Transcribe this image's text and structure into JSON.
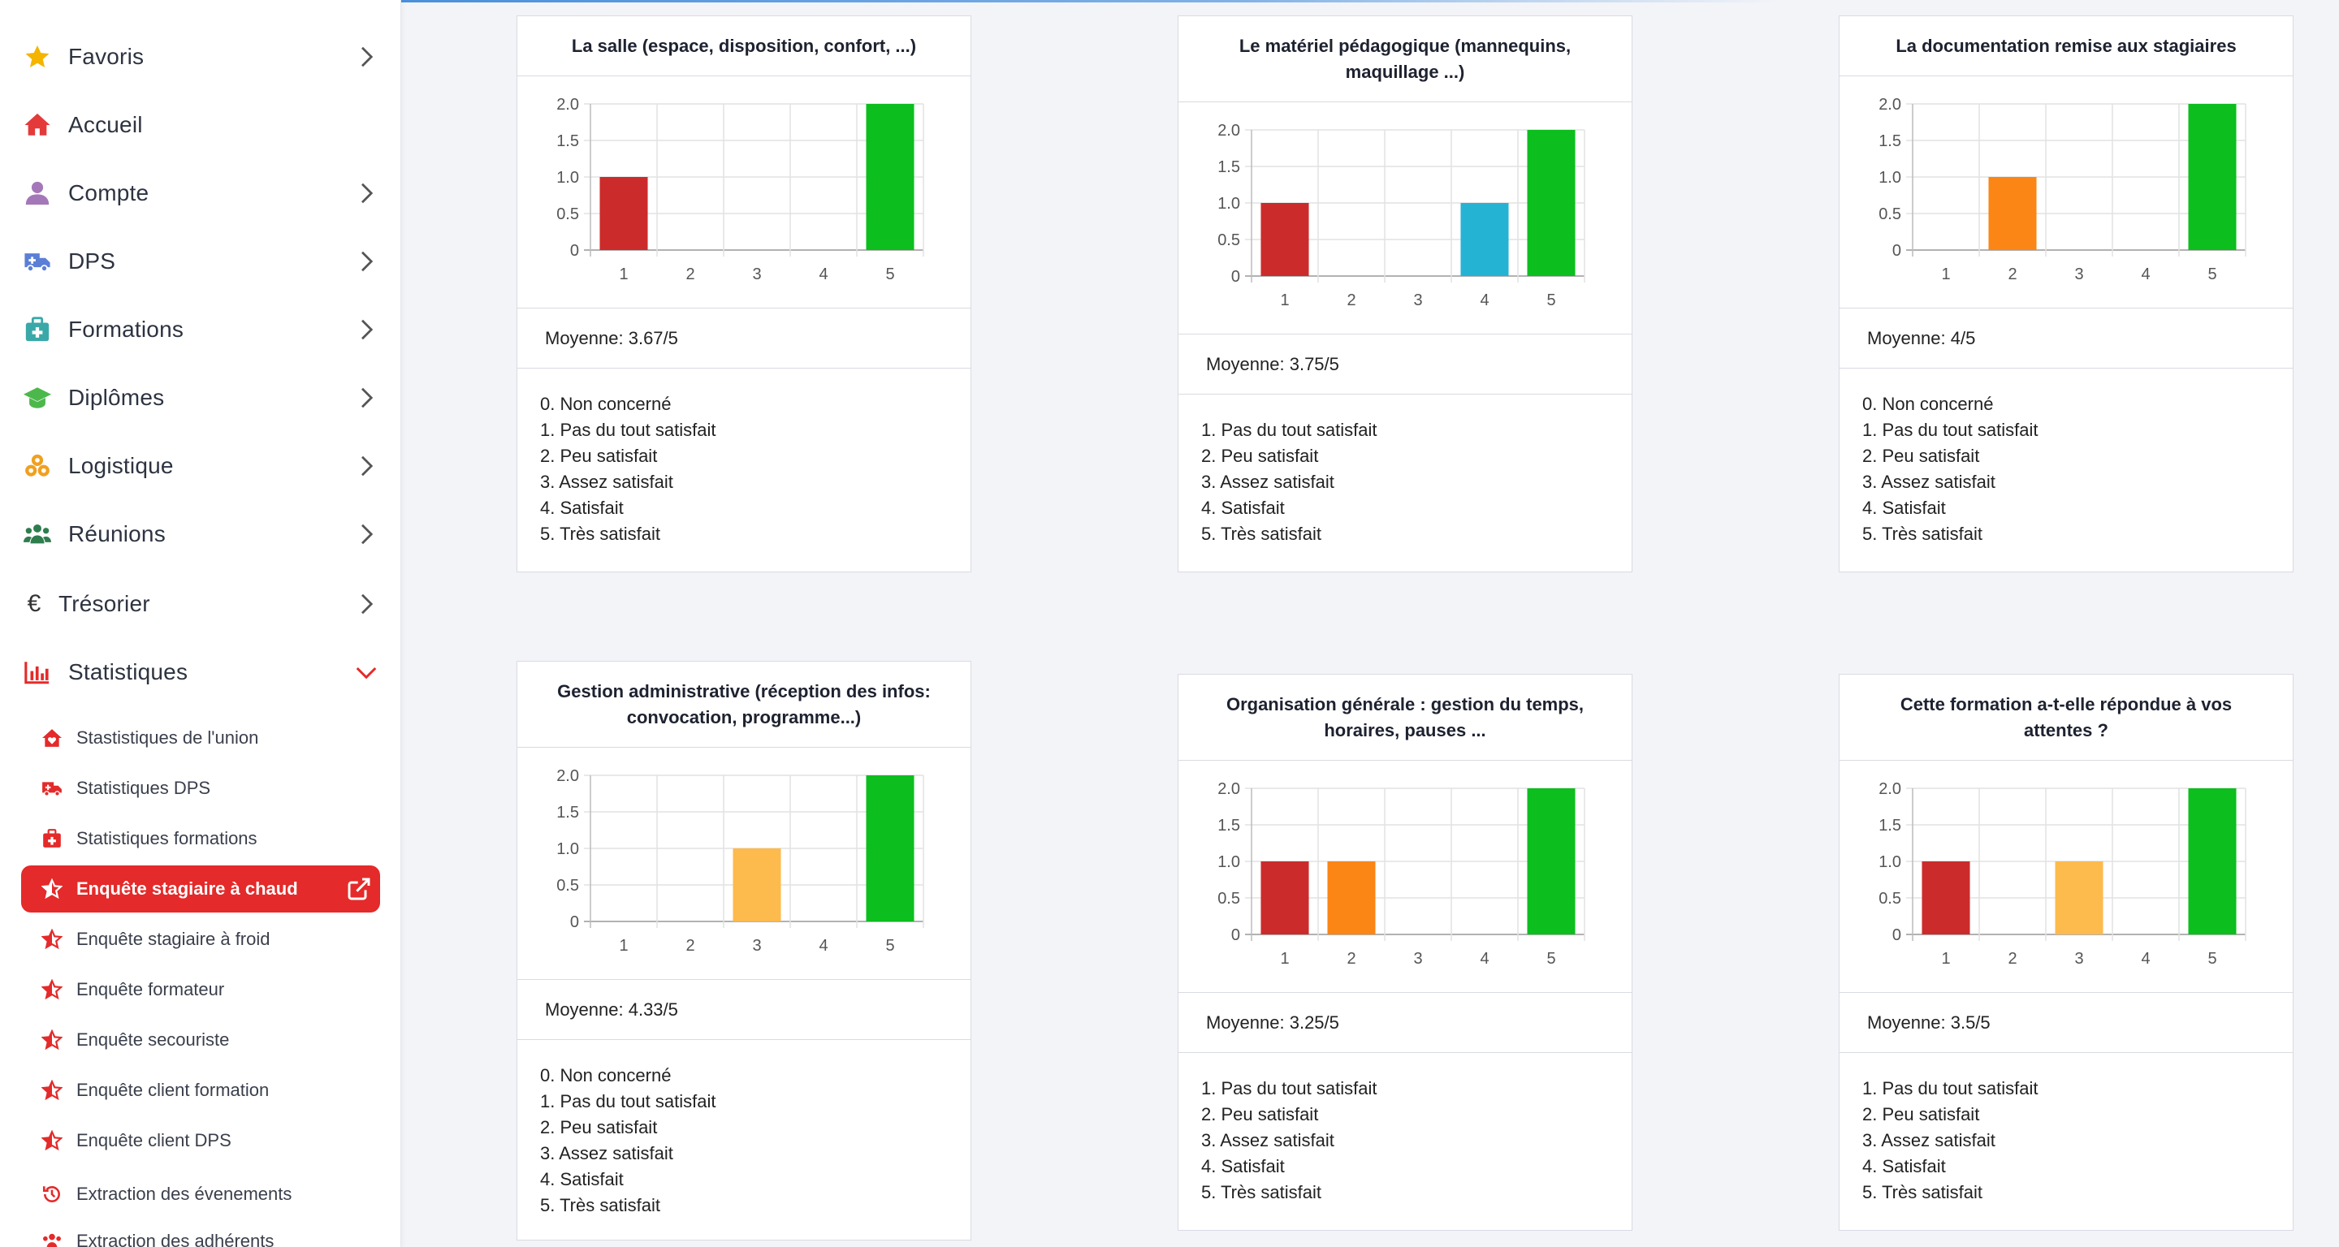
{
  "sidebar": {
    "items": [
      {
        "label": "Favoris",
        "icon": "star-icon",
        "color": "#f5b400",
        "chevron": "right"
      },
      {
        "label": "Accueil",
        "icon": "home-icon",
        "color": "#e43a3a",
        "chevron": "none"
      },
      {
        "label": "Compte",
        "icon": "user-icon",
        "color": "#a478b8",
        "chevron": "right"
      },
      {
        "label": "DPS",
        "icon": "ambulance-icon",
        "color": "#5b7fd6",
        "chevron": "right"
      },
      {
        "label": "Formations",
        "icon": "medkit-icon",
        "color": "#3aa8a8",
        "chevron": "right"
      },
      {
        "label": "Diplômes",
        "icon": "graduation-cap-icon",
        "color": "#4cb84c",
        "chevron": "right"
      },
      {
        "label": "Logistique",
        "icon": "boxes-icon",
        "color": "#f0a020",
        "chevron": "right"
      },
      {
        "label": "Réunions",
        "icon": "users-icon",
        "color": "#2e7d4f",
        "chevron": "right"
      },
      {
        "label": "Trésorier",
        "icon": "euro-icon",
        "color": "#333333",
        "chevron": "right"
      },
      {
        "label": "Statistiques",
        "icon": "chart-bar-icon",
        "color": "#e42a2a",
        "chevron": "down"
      }
    ],
    "sub_items": [
      {
        "label": "Stastistiques de l'union",
        "icon": "home-heart-icon",
        "active": false
      },
      {
        "label": "Statistiques DPS",
        "icon": "ambulance-icon",
        "active": false
      },
      {
        "label": "Statistiques formations",
        "icon": "medkit-icon",
        "active": false
      },
      {
        "label": "Enquête stagiaire à chaud",
        "icon": "star-half-icon",
        "active": true
      },
      {
        "label": "Enquête stagiaire à froid",
        "icon": "star-half-icon",
        "active": false
      },
      {
        "label": "Enquête formateur",
        "icon": "star-half-icon",
        "active": false
      },
      {
        "label": "Enquête secouriste",
        "icon": "star-half-icon",
        "active": false
      },
      {
        "label": "Enquête client formation",
        "icon": "star-half-icon",
        "active": false
      },
      {
        "label": "Enquête client DPS",
        "icon": "star-half-icon",
        "active": false
      },
      {
        "label": "Extraction des évenements",
        "icon": "history-icon",
        "active": false
      },
      {
        "label": "Extraction des adhérents",
        "icon": "users-icon",
        "active": false
      }
    ],
    "accent": "#e42a2a"
  },
  "cards": [
    {
      "title": "La salle (espace, disposition, confort, ...)",
      "average": "Moyenne: 3.67/5",
      "legend": [
        "0. Non concerné",
        "1. Pas du tout satisfait",
        "2. Peu satisfait",
        "3. Assez satisfait",
        "4. Satisfait",
        "5. Très satisfait"
      ]
    },
    {
      "title": "Le matériel pédagogique (mannequins, maquillage ...)",
      "average": "Moyenne: 3.75/5",
      "legend": [
        "1. Pas du tout satisfait",
        "2. Peu satisfait",
        "3. Assez satisfait",
        "4. Satisfait",
        "5. Très satisfait"
      ]
    },
    {
      "title": "La documentation remise aux stagiaires",
      "average": "Moyenne: 4/5",
      "legend": [
        "0. Non concerné",
        "1. Pas du tout satisfait",
        "2. Peu satisfait",
        "3. Assez satisfait",
        "4. Satisfait",
        "5. Très satisfait"
      ]
    },
    {
      "title": "Gestion administrative (réception des infos: convocation, programme...)",
      "average": "Moyenne: 4.33/5",
      "legend": [
        "0. Non concerné",
        "1. Pas du tout satisfait",
        "2. Peu satisfait",
        "3. Assez satisfait",
        "4. Satisfait",
        "5. Très satisfait"
      ]
    },
    {
      "title": "Organisation générale : gestion du temps, horaires, pauses ...",
      "average": "Moyenne: 3.25/5",
      "legend": [
        "1. Pas du tout satisfait",
        "2. Peu satisfait",
        "3. Assez satisfait",
        "4. Satisfait",
        "5. Très satisfait"
      ]
    },
    {
      "title": "Cette formation a-t-elle répondue à vos attentes ?",
      "average": "Moyenne: 3.5/5",
      "legend": [
        "1. Pas du tout satisfait",
        "2. Peu satisfait",
        "3. Assez satisfait",
        "4. Satisfait",
        "5. Très satisfait"
      ]
    }
  ],
  "chart_data": [
    {
      "type": "bar",
      "title": "La salle (espace, disposition, confort, ...)",
      "categories": [
        "1",
        "2",
        "3",
        "4",
        "5"
      ],
      "values": [
        1,
        0,
        0,
        0,
        2
      ],
      "colors": [
        "#cc2b2b",
        "#fb8515",
        "#fdba4d",
        "#25b3d4",
        "#0cbe1e"
      ],
      "ylim": [
        0,
        2
      ],
      "yticks": [
        "0",
        "0.5",
        "1.0",
        "1.5",
        "2.0"
      ]
    },
    {
      "type": "bar",
      "title": "Le matériel pédagogique (mannequins, maquillage ...)",
      "categories": [
        "1",
        "2",
        "3",
        "4",
        "5"
      ],
      "values": [
        1,
        0,
        0,
        1,
        2
      ],
      "colors": [
        "#cc2b2b",
        "#fb8515",
        "#fdba4d",
        "#25b3d4",
        "#0cbe1e"
      ],
      "ylim": [
        0,
        2
      ],
      "yticks": [
        "0",
        "0.5",
        "1.0",
        "1.5",
        "2.0"
      ]
    },
    {
      "type": "bar",
      "title": "La documentation remise aux stagiaires",
      "categories": [
        "1",
        "2",
        "3",
        "4",
        "5"
      ],
      "values": [
        0,
        1,
        0,
        0,
        2
      ],
      "colors": [
        "#cc2b2b",
        "#fb8515",
        "#fdba4d",
        "#25b3d4",
        "#0cbe1e"
      ],
      "ylim": [
        0,
        2
      ],
      "yticks": [
        "0",
        "0.5",
        "1.0",
        "1.5",
        "2.0"
      ]
    },
    {
      "type": "bar",
      "title": "Gestion administrative (réception des infos: convocation, programme...)",
      "categories": [
        "1",
        "2",
        "3",
        "4",
        "5"
      ],
      "values": [
        0,
        0,
        1,
        0,
        2
      ],
      "colors": [
        "#cc2b2b",
        "#fb8515",
        "#fdba4d",
        "#25b3d4",
        "#0cbe1e"
      ],
      "ylim": [
        0,
        2
      ],
      "yticks": [
        "0",
        "0.5",
        "1.0",
        "1.5",
        "2.0"
      ]
    },
    {
      "type": "bar",
      "title": "Organisation générale : gestion du temps, horaires, pauses ...",
      "categories": [
        "1",
        "2",
        "3",
        "4",
        "5"
      ],
      "values": [
        1,
        1,
        0,
        0,
        2
      ],
      "colors": [
        "#cc2b2b",
        "#fb8515",
        "#fdba4d",
        "#25b3d4",
        "#0cbe1e"
      ],
      "ylim": [
        0,
        2
      ],
      "yticks": [
        "0",
        "0.5",
        "1.0",
        "1.5",
        "2.0"
      ]
    },
    {
      "type": "bar",
      "title": "Cette formation a-t-elle répondue à vos attentes ?",
      "categories": [
        "1",
        "2",
        "3",
        "4",
        "5"
      ],
      "values": [
        1,
        0,
        1,
        0,
        2
      ],
      "colors": [
        "#cc2b2b",
        "#fb8515",
        "#fdba4d",
        "#25b3d4",
        "#0cbe1e"
      ],
      "ylim": [
        0,
        2
      ],
      "yticks": [
        "0",
        "0.5",
        "1.0",
        "1.5",
        "2.0"
      ]
    }
  ]
}
